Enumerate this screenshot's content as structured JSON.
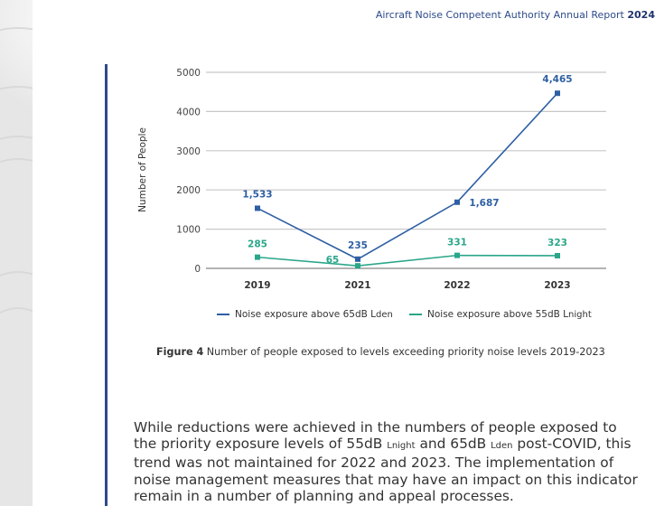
{
  "header": {
    "title": "Aircraft Noise Competent Authority Annual Report",
    "year": "2024"
  },
  "figure": {
    "label": "Figure 4",
    "caption": "Number of people exposed to levels exceeding priority noise levels 2019-2023"
  },
  "paragraph": {
    "part1": "While reductions were achieved in the numbers of people exposed to the priority exposure levels of 55dB ",
    "sub1": "night",
    "part2": " and 65dB ",
    "sub2": "den",
    "part3": " post-COVID, this trend was not maintained for 2022 and 2023. The implementation of noise management measures that may have an impact on this indicator remain in a number of planning and appeal processes.",
    "L": "L"
  },
  "colors": {
    "lden": "#2e5fa3",
    "lnight": "#2aa68a",
    "accent_rule": "#2e4a8c",
    "grid": "#c8c8c8"
  },
  "chart_data": {
    "type": "line",
    "title": "",
    "xlabel": "",
    "ylabel": "Number of People",
    "categories": [
      "2019",
      "2021",
      "2022",
      "2023"
    ],
    "ylim": [
      0,
      5000
    ],
    "yticks": [
      0,
      1000,
      2000,
      3000,
      4000,
      5000
    ],
    "ytick_labels": [
      "0",
      "1000",
      "2000",
      "3000",
      "4000",
      "5000"
    ],
    "grid": true,
    "legend_position": "bottom",
    "series": [
      {
        "name": "Noise exposure above 65dB Lden",
        "name_main": "Noise exposure above 65dB L",
        "name_sub": "den",
        "color": "#2e5fa3",
        "values": [
          1533,
          235,
          1687,
          4465
        ],
        "labels": [
          "1,533",
          "235",
          "1,687",
          "4,465"
        ]
      },
      {
        "name": "Noise exposure above 55dB Lnight",
        "name_main": "Noise exposure above 55dB L",
        "name_sub": "night",
        "color": "#2aa68a",
        "values": [
          285,
          65,
          331,
          323
        ],
        "labels": [
          "285",
          "65",
          "331",
          "323"
        ]
      }
    ]
  }
}
